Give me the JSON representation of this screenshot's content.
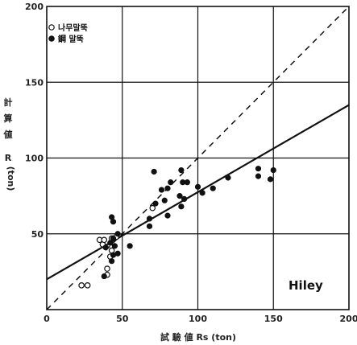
{
  "chart_data": {
    "type": "scatter",
    "title": "",
    "xlabel": "試 驗 値 Rs (ton)",
    "ylabel_chars": [
      "計",
      "算",
      "値",
      "R",
      "(ton)"
    ],
    "xlim": [
      0,
      200
    ],
    "ylim": [
      0,
      200
    ],
    "xticks": [
      0,
      50,
      100,
      150,
      200
    ],
    "yticks": [
      50,
      100,
      150,
      200
    ],
    "grid": true,
    "legend_position": "top-left",
    "annotation": "Hiley",
    "series": [
      {
        "name": "나무말뚝",
        "marker": "open-circle",
        "points": [
          [
            23,
            16
          ],
          [
            27,
            16
          ],
          [
            35,
            46
          ],
          [
            37,
            43
          ],
          [
            38,
            46
          ],
          [
            40,
            27
          ],
          [
            40,
            23
          ],
          [
            42,
            35
          ],
          [
            43,
            39
          ],
          [
            43,
            47
          ],
          [
            46,
            48
          ],
          [
            70,
            67
          ]
        ]
      },
      {
        "name": "鋼 말뚝",
        "marker": "filled-circle",
        "points": [
          [
            38,
            22
          ],
          [
            39,
            41
          ],
          [
            42,
            44
          ],
          [
            43,
            32
          ],
          [
            44,
            36
          ],
          [
            45,
            42
          ],
          [
            44,
            47
          ],
          [
            43,
            61
          ],
          [
            44,
            58
          ],
          [
            47,
            37
          ],
          [
            47,
            50
          ],
          [
            55,
            42
          ],
          [
            68,
            60
          ],
          [
            68,
            55
          ],
          [
            71,
            91
          ],
          [
            72,
            70
          ],
          [
            76,
            79
          ],
          [
            78,
            72
          ],
          [
            80,
            80
          ],
          [
            80,
            62
          ],
          [
            82,
            84
          ],
          [
            88,
            75
          ],
          [
            89,
            92
          ],
          [
            89,
            68
          ],
          [
            90,
            84
          ],
          [
            91,
            73
          ],
          [
            93,
            84
          ],
          [
            100,
            81
          ],
          [
            103,
            77
          ],
          [
            110,
            80
          ],
          [
            120,
            87
          ],
          [
            140,
            93
          ],
          [
            140,
            88
          ],
          [
            148,
            86
          ],
          [
            150,
            92
          ]
        ]
      }
    ],
    "lines": [
      {
        "style": "solid",
        "from": [
          0,
          20
        ],
        "to": [
          200,
          135
        ]
      },
      {
        "style": "dashed",
        "from": [
          0,
          0
        ],
        "to": [
          200,
          200
        ]
      }
    ]
  }
}
